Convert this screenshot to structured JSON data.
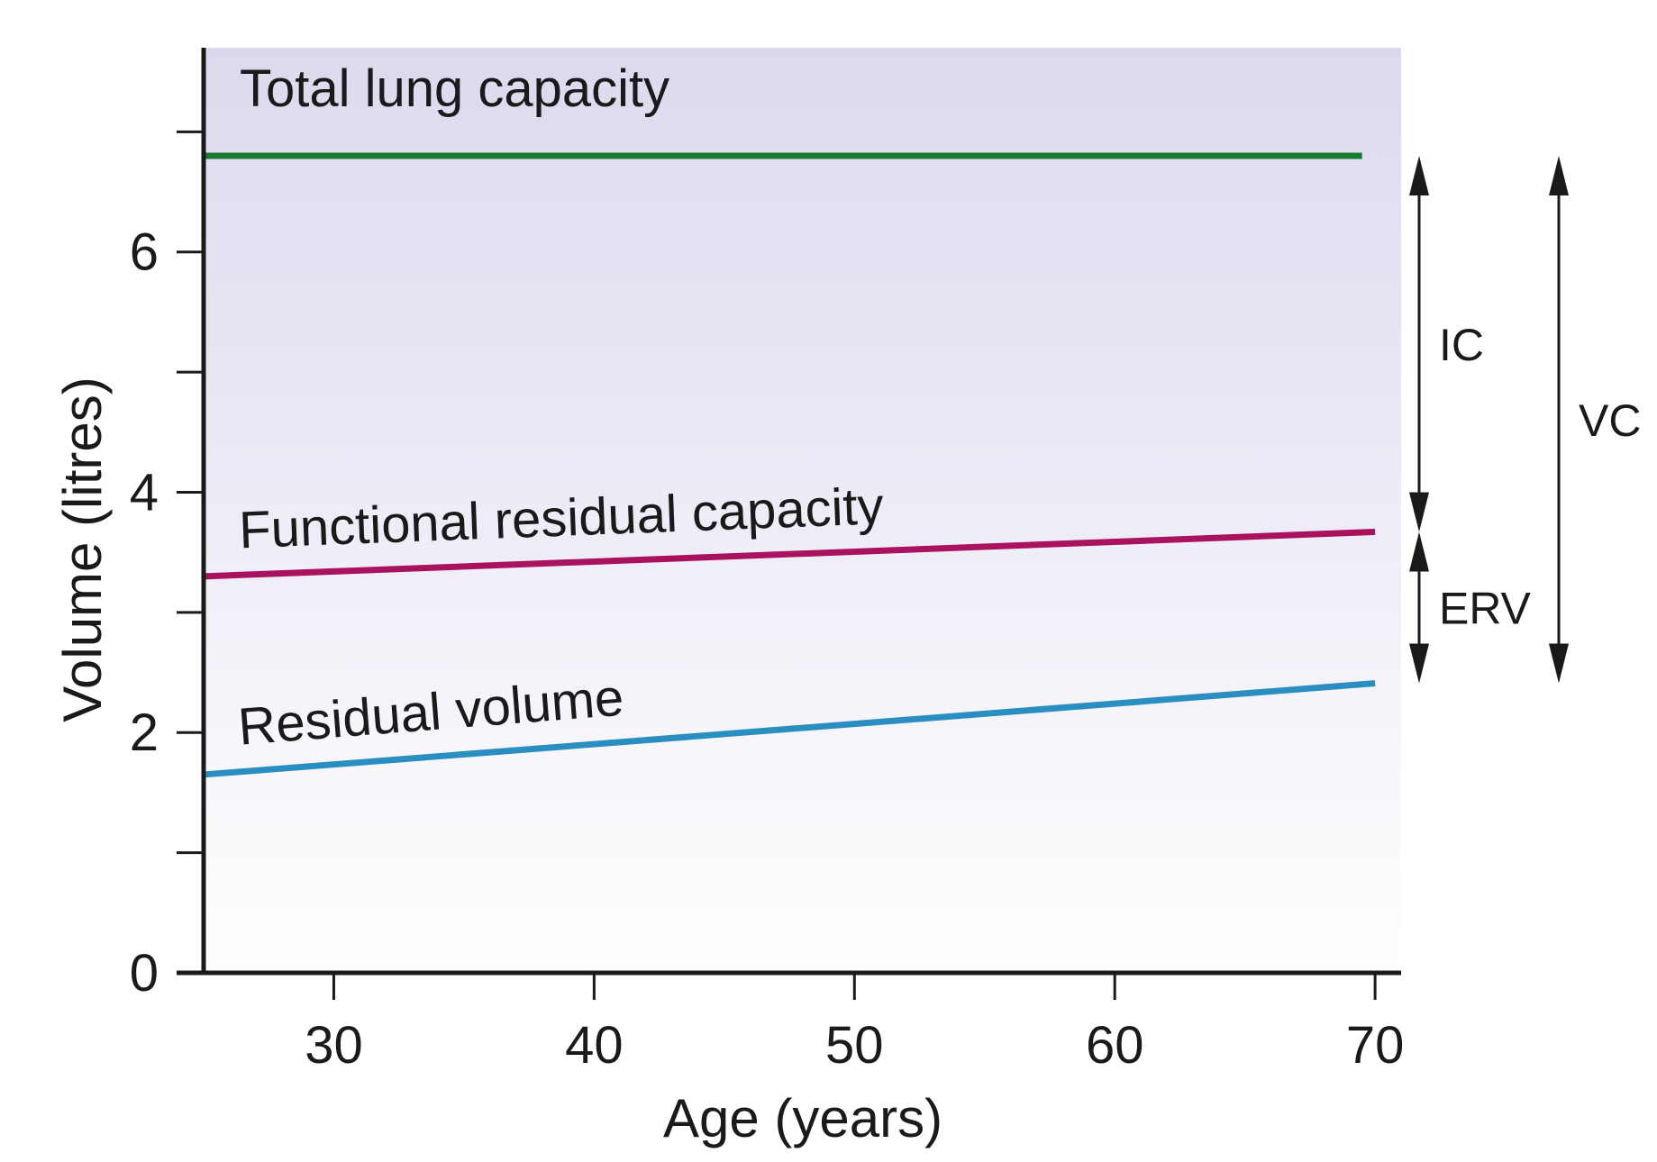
{
  "chart_data": {
    "type": "line",
    "xlabel": "Age (years)",
    "ylabel": "Volume (litres)",
    "xlim": [
      25,
      71
    ],
    "ylim": [
      0,
      7.7
    ],
    "x_ticks": [
      30,
      40,
      50,
      60,
      70
    ],
    "y_ticks": [
      0,
      1,
      2,
      3,
      4,
      5,
      6,
      7
    ],
    "y_tick_labels": [
      "0",
      "",
      "2",
      "",
      "4",
      "",
      "6",
      ""
    ],
    "grid": false,
    "background": "gradient lavender (top) to white (bottom)",
    "series": [
      {
        "name": "Total lung capacity",
        "color": "#1a7a32",
        "x": [
          25,
          69.5
        ],
        "y": [
          6.8,
          6.8
        ]
      },
      {
        "name": "Functional residual capacity",
        "color": "#a8125e",
        "x": [
          25,
          70
        ],
        "y": [
          3.3,
          3.67
        ]
      },
      {
        "name": "Residual volume",
        "color": "#2a8fc0",
        "x": [
          25,
          70
        ],
        "y": [
          1.65,
          2.41
        ]
      }
    ],
    "annotations": [
      {
        "label": "IC",
        "from": 3.67,
        "to": 6.8,
        "x_offset": 0
      },
      {
        "label": "ERV",
        "from": 2.41,
        "to": 3.67,
        "x_offset": 0
      },
      {
        "label": "VC",
        "from": 2.41,
        "to": 6.8,
        "x_offset": 1
      }
    ]
  }
}
